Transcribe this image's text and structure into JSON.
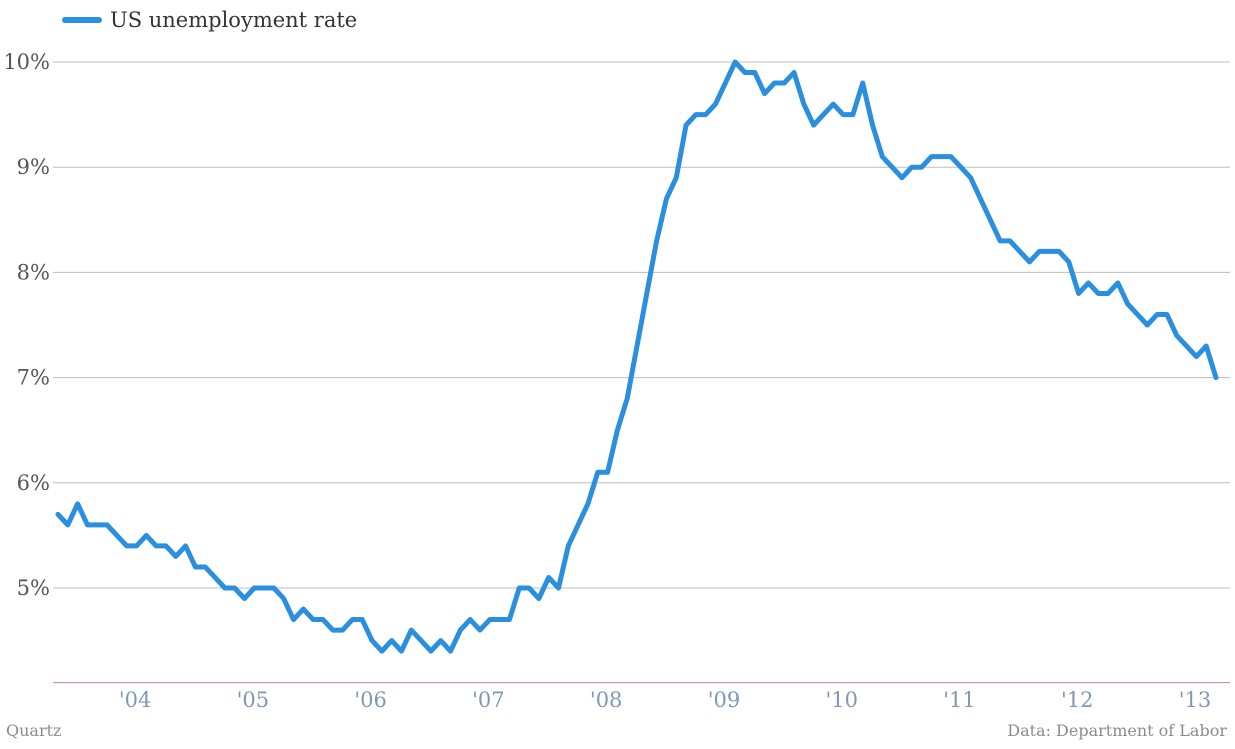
{
  "chart_data": {
    "type": "line",
    "title": "",
    "xlabel": "",
    "ylabel": "",
    "ylim": [
      4.1,
      10.1
    ],
    "y_ticks": [
      5,
      6,
      7,
      8,
      9,
      10
    ],
    "y_tick_labels": [
      "5%",
      "6%",
      "7%",
      "8%",
      "9%",
      "10%"
    ],
    "x_tick_labels": [
      "'04",
      "'05",
      "'06",
      "'07",
      "'08",
      "'09",
      "'10",
      "'11",
      "'12",
      "'13"
    ],
    "x_tick_years": [
      2004,
      2005,
      2006,
      2007,
      2008,
      2009,
      2010,
      2011,
      2012,
      2013
    ],
    "x_start": "2003-07",
    "grid": true,
    "legend_position": "top-left",
    "series": [
      {
        "name": "US unemployment rate",
        "color": "#2b8fe0",
        "values": [
          5.7,
          5.6,
          5.8,
          5.6,
          5.6,
          5.6,
          5.5,
          5.4,
          5.4,
          5.5,
          5.4,
          5.4,
          5.3,
          5.4,
          5.2,
          5.2,
          5.1,
          5.0,
          5.0,
          4.9,
          5.0,
          5.0,
          5.0,
          4.9,
          4.7,
          4.8,
          4.7,
          4.7,
          4.6,
          4.6,
          4.7,
          4.7,
          4.5,
          4.4,
          4.5,
          4.4,
          4.6,
          4.5,
          4.4,
          4.5,
          4.4,
          4.6,
          4.7,
          4.6,
          4.7,
          4.7,
          4.7,
          5.0,
          5.0,
          4.9,
          5.1,
          5.0,
          5.4,
          5.6,
          5.8,
          6.1,
          6.1,
          6.5,
          6.8,
          7.3,
          7.8,
          8.3,
          8.7,
          8.9,
          9.4,
          9.5,
          9.5,
          9.6,
          9.8,
          10.0,
          9.9,
          9.9,
          9.7,
          9.8,
          9.8,
          9.9,
          9.6,
          9.4,
          9.5,
          9.6,
          9.5,
          9.5,
          9.8,
          9.4,
          9.1,
          9.0,
          8.9,
          9.0,
          9.0,
          9.1,
          9.1,
          9.1,
          9.0,
          8.9,
          8.7,
          8.5,
          8.3,
          8.3,
          8.2,
          8.1,
          8.2,
          8.2,
          8.2,
          8.1,
          7.8,
          7.9,
          7.8,
          7.8,
          7.9,
          7.7,
          7.6,
          7.5,
          7.6,
          7.6,
          7.4,
          7.3,
          7.2,
          7.3,
          7.0
        ]
      }
    ]
  },
  "footer": {
    "source_left": "Quartz",
    "source_right": "Data: Department of Labor"
  }
}
